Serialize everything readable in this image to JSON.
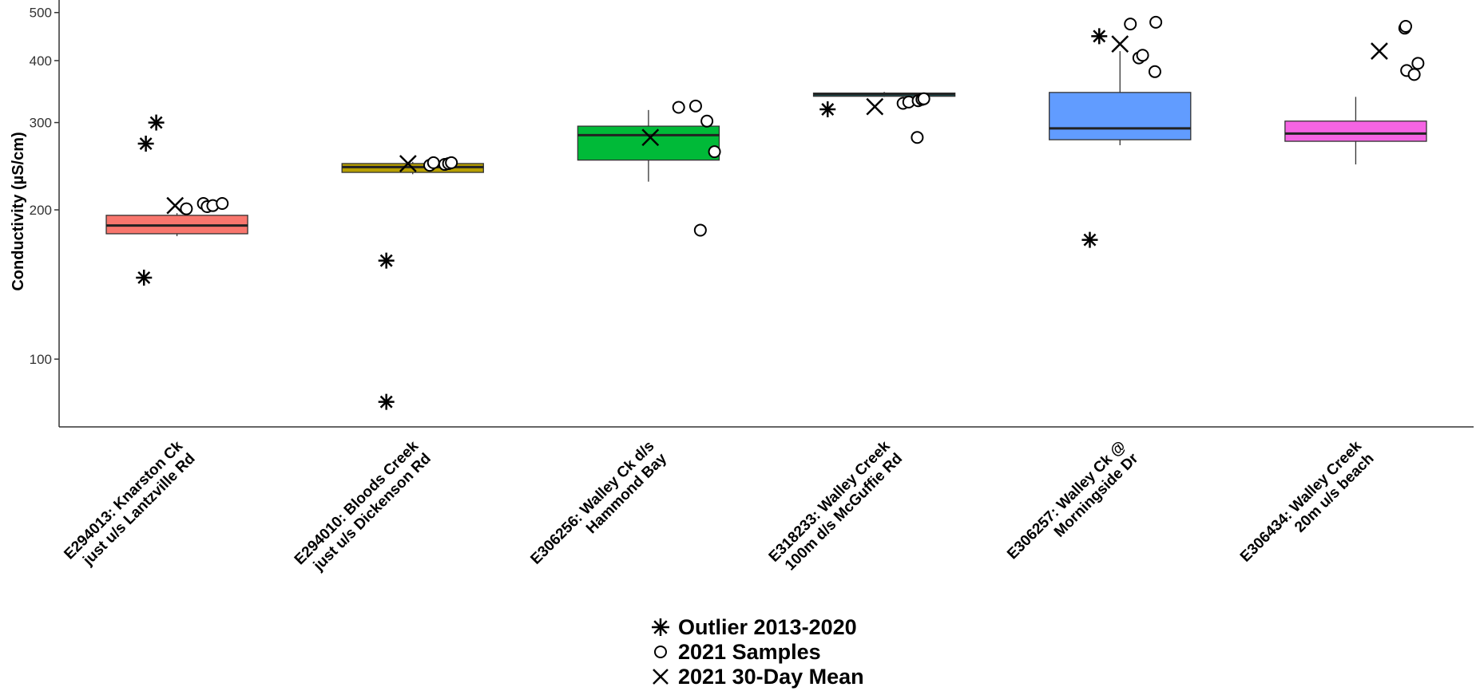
{
  "chart_data": {
    "type": "box",
    "title": "",
    "xlabel": "",
    "ylabel": "Conductivity (µS/cm)",
    "yscale": "log",
    "ylim": [
      73,
      530
    ],
    "yticks": [
      100,
      200,
      300,
      400,
      500
    ],
    "ytick_labels": [
      "100",
      "200",
      "300",
      "400",
      "500"
    ],
    "grid": false,
    "legend_position": "bottom",
    "categories": [
      [
        "E294013: Knarston Ck",
        "just u/s Lantzville Rd"
      ],
      [
        "E294010: Bloods Creek",
        "just u/s Dickenson Rd"
      ],
      [
        "E306256: Walley Ck d/s",
        "Hammond Bay"
      ],
      [
        "E318233: Walley Creek",
        "100m d/s McGuffie Rd"
      ],
      [
        "E306257: Walley Ck @",
        "Morningside Dr"
      ],
      [
        "E306434: Walley Creek",
        "20m u/s beach"
      ]
    ],
    "boxes": [
      {
        "color": "#F8766D",
        "whisker_low": 177,
        "q1": 179,
        "median": 186,
        "q3": 195,
        "whisker_high": 197,
        "outliers_2013_2020": [
          [
            -0.35,
            146
          ],
          [
            -0.33,
            272
          ],
          [
            -0.22,
            300
          ]
        ],
        "samples_2021": [
          [
            0.1,
            201
          ],
          [
            0.28,
            206
          ],
          [
            0.32,
            203
          ],
          [
            0.38,
            204
          ],
          [
            0.48,
            206
          ]
        ],
        "mean_2021": [
          -0.02,
          204
        ]
      },
      {
        "color": "#B79F00",
        "whisker_low": 236,
        "q1": 238,
        "median": 244,
        "q3": 248,
        "whisker_high": 250,
        "outliers_2013_2020": [
          [
            -0.28,
            158
          ],
          [
            -0.28,
            82
          ]
        ],
        "samples_2021": [
          [
            0.18,
            246
          ],
          [
            0.22,
            249
          ],
          [
            0.34,
            247
          ],
          [
            0.38,
            248
          ],
          [
            0.41,
            249
          ]
        ],
        "mean_2021": [
          -0.05,
          248
        ]
      },
      {
        "color": "#00BA38",
        "whisker_low": 228,
        "q1": 252,
        "median": 283,
        "q3": 295,
        "whisker_high": 318,
        "outliers_2013_2020": [],
        "samples_2021": [
          [
            0.32,
            322
          ],
          [
            0.5,
            324
          ],
          [
            0.62,
            302
          ],
          [
            0.7,
            262
          ],
          [
            0.55,
            182
          ]
        ],
        "mean_2021": [
          0.02,
          280
        ]
      },
      {
        "color": "#00BFC4",
        "whisker_low": 338,
        "q1": 340,
        "median": 342,
        "q3": 344,
        "whisker_high": 346,
        "outliers_2013_2020": [
          [
            -0.6,
            319
          ]
        ],
        "samples_2021": [
          [
            0.2,
            328
          ],
          [
            0.26,
            330
          ],
          [
            0.36,
            332
          ],
          [
            0.4,
            334
          ],
          [
            0.42,
            335
          ],
          [
            0.35,
            280
          ]
        ],
        "mean_2021": [
          -0.1,
          323
        ]
      },
      {
        "color": "#619CFF",
        "whisker_low": 270,
        "q1": 277,
        "median": 292,
        "q3": 345,
        "whisker_high": 418,
        "outliers_2013_2020": [
          [
            -0.22,
            448
          ],
          [
            -0.32,
            174
          ]
        ],
        "samples_2021": [
          [
            0.11,
            474
          ],
          [
            0.2,
            405
          ],
          [
            0.24,
            410
          ],
          [
            0.37,
            380
          ],
          [
            0.38,
            478
          ]
        ],
        "mean_2021": [
          0.0,
          432
        ]
      },
      {
        "color": "#F564E3",
        "whisker_low": 247,
        "q1": 275,
        "median": 285,
        "q3": 302,
        "whisker_high": 338,
        "outliers_2013_2020": [],
        "samples_2021": [
          [
            0.52,
            465
          ],
          [
            0.53,
            469
          ],
          [
            0.54,
            382
          ],
          [
            0.62,
            375
          ],
          [
            0.66,
            395
          ]
        ],
        "mean_2021": [
          0.25,
          418
        ]
      }
    ],
    "legend": [
      {
        "symbol": "asterisk",
        "label": "Outlier 2013-2020"
      },
      {
        "symbol": "circle",
        "label": "2021 Samples"
      },
      {
        "symbol": "cross",
        "label": "2021 30-Day Mean"
      }
    ]
  }
}
